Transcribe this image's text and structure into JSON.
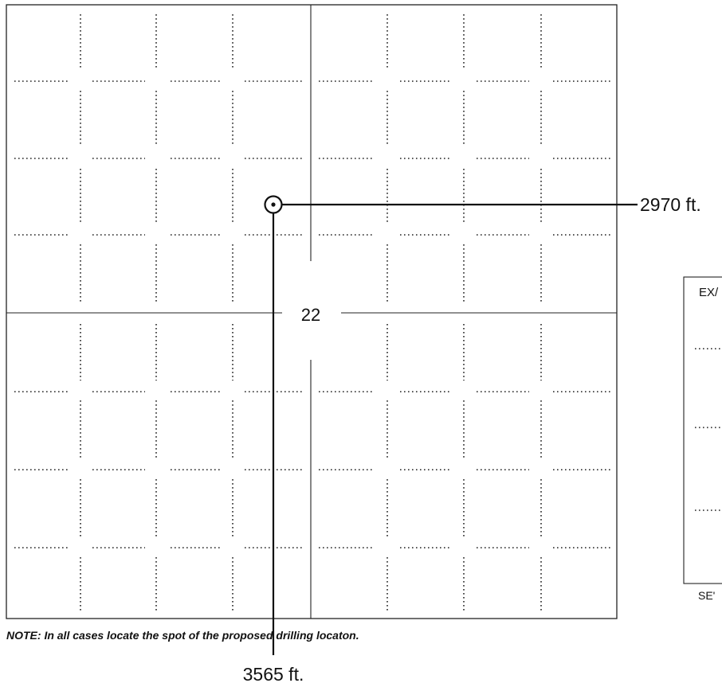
{
  "plat": {
    "section_number": "22",
    "measure_east_label": "2970 ft.",
    "measure_south_label": "3565 ft.",
    "note": "NOTE: In all cases locate the spot of the proposed drilling locaton.",
    "well_symbol": "well-location-marker"
  },
  "example_panel": {
    "heading_partial": "EX/",
    "footer_partial": "SE'"
  }
}
